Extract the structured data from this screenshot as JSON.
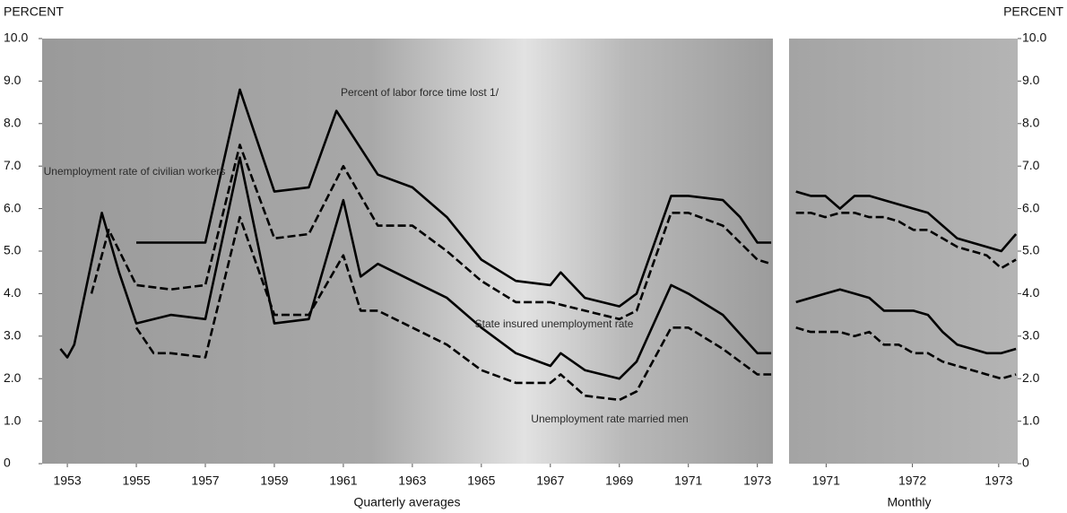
{
  "chart_data": [
    {
      "type": "line",
      "ylabel": "PERCENT",
      "xlabel": "Quarterly averages",
      "ylim": [
        0,
        10
      ],
      "yticks": [
        0,
        {
          "value": 1,
          "label": "1.0"
        },
        {
          "value": 2,
          "label": "2.0"
        },
        {
          "value": 3,
          "label": "3.0"
        },
        {
          "value": 4,
          "label": "4.0"
        },
        {
          "value": 5,
          "label": "5.0"
        },
        {
          "value": 6,
          "label": "6.0"
        },
        {
          "value": 7,
          "label": "7.0"
        },
        {
          "value": 8,
          "label": "8.0"
        },
        {
          "value": 9,
          "label": "9.0"
        },
        {
          "value": 10,
          "label": "10.0"
        }
      ],
      "xlim": [
        1952.27,
        1973.45
      ],
      "xticks": [
        1953,
        1955,
        1957,
        1959,
        1961,
        1963,
        1965,
        1967,
        1969,
        1971,
        1973
      ],
      "series": [
        {
          "name": "Percent of labor force time lost 1/",
          "color": "#000000",
          "style": "solid",
          "x": [
            1955,
            1956,
            1957,
            1958,
            1959,
            1960,
            1960.8,
            1962,
            1963,
            1964,
            1965,
            1966,
            1967,
            1967.3,
            1968,
            1969,
            1969.5,
            1970.5,
            1971,
            1972,
            1972.5,
            1973,
            1973.4
          ],
          "values": [
            5.2,
            5.2,
            5.2,
            8.8,
            6.4,
            6.5,
            8.3,
            6.8,
            6.5,
            5.8,
            4.8,
            4.3,
            4.2,
            4.5,
            3.9,
            3.7,
            4.0,
            6.3,
            6.3,
            6.2,
            5.8,
            5.2,
            5.2
          ]
        },
        {
          "name": "Unemployment rate of civilian workers",
          "color": "#000000",
          "style": "dashed",
          "x": [
            1953.7,
            1954.2,
            1955,
            1956,
            1957,
            1958,
            1959,
            1960,
            1961,
            1962,
            1963,
            1964,
            1965,
            1966,
            1967,
            1968,
            1969,
            1969.5,
            1970.5,
            1971,
            1972,
            1973,
            1973.4
          ],
          "values": [
            4.0,
            5.5,
            4.2,
            4.1,
            4.2,
            7.5,
            5.3,
            5.4,
            7.0,
            5.6,
            5.6,
            5.0,
            4.3,
            3.8,
            3.8,
            3.6,
            3.4,
            3.6,
            5.9,
            5.9,
            5.6,
            4.8,
            4.7
          ]
        },
        {
          "name": "State insured unemployment rate",
          "color": "#000000",
          "style": "solid",
          "x": [
            1952.8,
            1953,
            1953.2,
            1954,
            1954.5,
            1955,
            1956,
            1957,
            1958,
            1959,
            1960,
            1961,
            1961.5,
            1962,
            1963,
            1964,
            1965,
            1966,
            1967,
            1967.3,
            1968,
            1969,
            1969.5,
            1970.5,
            1971,
            1972,
            1973,
            1973.4
          ],
          "values": [
            2.7,
            2.5,
            2.8,
            5.9,
            4.5,
            3.3,
            3.5,
            3.4,
            7.2,
            3.3,
            3.4,
            6.2,
            4.4,
            4.7,
            4.3,
            3.9,
            3.2,
            2.6,
            2.3,
            2.6,
            2.2,
            2.0,
            2.4,
            4.2,
            4.0,
            3.5,
            2.6,
            2.6
          ]
        },
        {
          "name": "Unemployment rate married men",
          "color": "#000000",
          "style": "dashed",
          "x": [
            1955,
            1955.5,
            1956,
            1957,
            1958,
            1959,
            1960,
            1961,
            1961.5,
            1962,
            1963,
            1964,
            1965,
            1966,
            1967,
            1967.3,
            1968,
            1969,
            1969.5,
            1970.5,
            1971,
            1972,
            1973,
            1973.4
          ],
          "values": [
            3.2,
            2.6,
            2.6,
            2.5,
            5.8,
            3.5,
            3.5,
            4.9,
            3.6,
            3.6,
            3.2,
            2.8,
            2.2,
            1.9,
            1.9,
            2.1,
            1.6,
            1.5,
            1.7,
            3.2,
            3.2,
            2.7,
            2.1,
            2.1
          ]
        }
      ]
    },
    {
      "type": "line",
      "ylabel": "PERCENT",
      "xlabel": "Monthly",
      "ylim": [
        0,
        10
      ],
      "yticks": [
        0,
        {
          "value": 1,
          "label": "1.0"
        },
        {
          "value": 2,
          "label": "2.0"
        },
        {
          "value": 3,
          "label": "3.0"
        },
        {
          "value": 4,
          "label": "4.0"
        },
        {
          "value": 5,
          "label": "5.0"
        },
        {
          "value": 6,
          "label": "6.0"
        },
        {
          "value": 7,
          "label": "7.0"
        },
        {
          "value": 8,
          "label": "8.0"
        },
        {
          "value": 9,
          "label": "9.0"
        },
        {
          "value": 10,
          "label": "10.0"
        }
      ],
      "xlim": [
        1970.57,
        1973.22
      ],
      "xticks": [
        1971,
        1972,
        1973
      ],
      "series": [
        {
          "color": "#000000",
          "style": "solid",
          "x": [
            1970.65,
            1970.82,
            1970.99,
            1971.16,
            1971.33,
            1971.5,
            1971.67,
            1971.84,
            1972.01,
            1972.18,
            1972.35,
            1972.52,
            1972.69,
            1972.86,
            1973.03,
            1973.2
          ],
          "values": [
            6.4,
            6.3,
            6.3,
            6.0,
            6.3,
            6.3,
            6.2,
            6.1,
            6.0,
            5.9,
            5.6,
            5.3,
            5.2,
            5.1,
            5.0,
            5.4
          ]
        },
        {
          "color": "#000000",
          "style": "dashed",
          "x": [
            1970.65,
            1970.82,
            1970.99,
            1971.16,
            1971.33,
            1971.5,
            1971.67,
            1971.84,
            1972.01,
            1972.18,
            1972.35,
            1972.52,
            1972.69,
            1972.86,
            1973.03,
            1973.2
          ],
          "values": [
            5.9,
            5.9,
            5.8,
            5.9,
            5.9,
            5.8,
            5.8,
            5.7,
            5.5,
            5.5,
            5.3,
            5.1,
            5.0,
            4.9,
            4.6,
            4.8
          ]
        },
        {
          "color": "#000000",
          "style": "solid",
          "x": [
            1970.65,
            1970.82,
            1970.99,
            1971.16,
            1971.33,
            1971.5,
            1971.67,
            1971.84,
            1972.01,
            1972.18,
            1972.35,
            1972.52,
            1972.69,
            1972.86,
            1973.03,
            1973.2
          ],
          "values": [
            3.8,
            3.9,
            4.0,
            4.1,
            4.0,
            3.9,
            3.6,
            3.6,
            3.6,
            3.5,
            3.1,
            2.8,
            2.7,
            2.6,
            2.6,
            2.7
          ]
        },
        {
          "color": "#000000",
          "style": "dashed",
          "x": [
            1970.65,
            1970.82,
            1970.99,
            1971.16,
            1971.33,
            1971.5,
            1971.67,
            1971.84,
            1972.01,
            1972.18,
            1972.35,
            1972.52,
            1972.69,
            1972.86,
            1973.03,
            1973.2
          ],
          "values": [
            3.2,
            3.1,
            3.1,
            3.1,
            3.0,
            3.1,
            2.8,
            2.8,
            2.6,
            2.6,
            2.4,
            2.3,
            2.2,
            2.1,
            2.0,
            2.1
          ]
        }
      ]
    }
  ]
}
